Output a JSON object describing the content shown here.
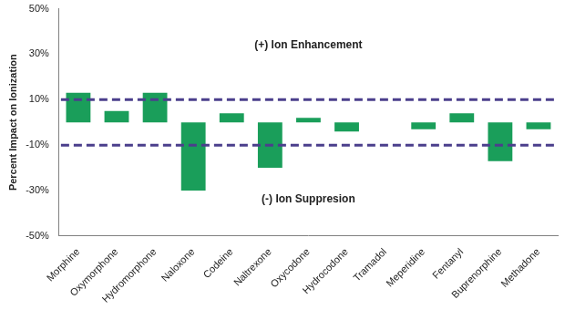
{
  "chart_data": {
    "type": "bar",
    "y_label": "Percent Impact on Ionization",
    "annotations": [
      "(+) Ion Enhancement",
      "(-) Ion Suppresion"
    ],
    "categories": [
      "Morphine",
      "Oxymorphone",
      "Hydromorphone",
      "Naloxone",
      "Codeine",
      "Naltrexone",
      "Oxycodone",
      "Hydrocodone",
      "Tramadol",
      "Meperidine",
      "Fentanyl",
      "Buprenorphine",
      "Methadone"
    ],
    "values": [
      13,
      5,
      13,
      -30,
      4,
      -20,
      2,
      -4,
      0,
      -3,
      4,
      -17,
      -3
    ],
    "color": "#1a9e5a",
    "hlines": [
      10,
      -10
    ],
    "ylim": [
      -50,
      50
    ],
    "yticks": [
      {
        "value": -50,
        "label": "-50%"
      },
      {
        "value": -30,
        "label": "-30%"
      },
      {
        "value": -10,
        "label": "-10%"
      },
      {
        "value": 10,
        "label": "10%"
      },
      {
        "value": 30,
        "label": "30%"
      },
      {
        "value": 50,
        "label": "50%"
      }
    ],
    "grid": false
  }
}
